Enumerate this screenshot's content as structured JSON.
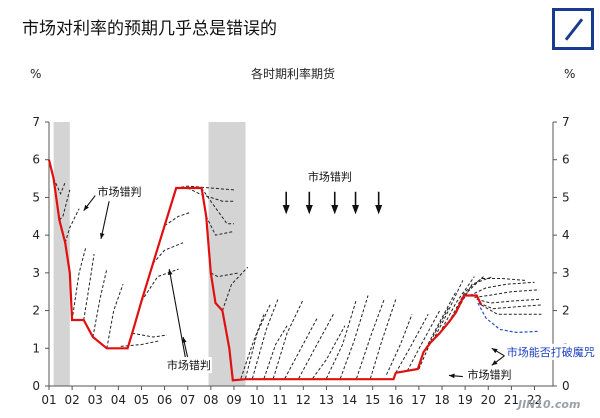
{
  "page": {
    "title": "市场对利率的预期几乎总是错误的",
    "watermark": "JIN10.com"
  },
  "chart_data": {
    "type": "line",
    "title": "各时期利率期货",
    "y_unit_left": "%",
    "y_unit_right": "%",
    "x_tick_labels": [
      "01",
      "02",
      "03",
      "04",
      "05",
      "06",
      "07",
      "08",
      "09",
      "10",
      "11",
      "12",
      "13",
      "14",
      "15",
      "16",
      "17",
      "18",
      "19",
      "20",
      "21",
      "22"
    ],
    "y_tick_labels": [
      "0",
      "1",
      "2",
      "3",
      "4",
      "5",
      "6",
      "7"
    ],
    "xlim": [
      2001,
      2022.8
    ],
    "ylim": [
      0,
      7
    ],
    "recession_bands": [
      [
        2001.2,
        2001.9
      ],
      [
        2007.9,
        2009.5
      ]
    ],
    "colors": {
      "actual": "#e01010",
      "futures": "#222222",
      "recent_futures": "#2a50c8",
      "bands": "#d4d4d4"
    },
    "annotations": [
      {
        "text": "市场错判",
        "x": 2003.1,
        "y": 5.05
      },
      {
        "text": "市场错判",
        "x": 2012.2,
        "y": 5.45
      },
      {
        "text": "市场错判",
        "x": 2006.1,
        "y": 0.45
      },
      {
        "text": "市场错判",
        "x": 2019.1,
        "y": 0.2
      },
      {
        "text": "市场能否打破魔咒",
        "x": 2020.8,
        "y": 0.8
      }
    ],
    "series": [
      {
        "kind": "actual",
        "points": [
          [
            2001.0,
            6.0
          ],
          [
            2001.2,
            5.5
          ],
          [
            2001.45,
            4.4
          ],
          [
            2001.7,
            3.8
          ],
          [
            2001.9,
            3.0
          ],
          [
            2002.0,
            1.75
          ],
          [
            2002.5,
            1.75
          ],
          [
            2002.9,
            1.3
          ],
          [
            2003.5,
            1.0
          ],
          [
            2004.4,
            1.0
          ],
          [
            2004.6,
            1.4
          ],
          [
            2005.0,
            2.25
          ],
          [
            2005.5,
            3.25
          ],
          [
            2006.0,
            4.25
          ],
          [
            2006.5,
            5.25
          ],
          [
            2007.6,
            5.25
          ],
          [
            2007.8,
            4.5
          ],
          [
            2008.0,
            3.0
          ],
          [
            2008.2,
            2.2
          ],
          [
            2008.5,
            2.0
          ],
          [
            2008.8,
            1.0
          ],
          [
            2008.95,
            0.15
          ],
          [
            2009.5,
            0.18
          ],
          [
            2015.9,
            0.18
          ],
          [
            2016.0,
            0.35
          ],
          [
            2016.95,
            0.45
          ],
          [
            2017.2,
            0.9
          ],
          [
            2017.5,
            1.15
          ],
          [
            2017.9,
            1.4
          ],
          [
            2018.3,
            1.7
          ],
          [
            2018.6,
            1.95
          ],
          [
            2018.95,
            2.4
          ],
          [
            2019.5,
            2.4
          ],
          [
            2019.7,
            2.15
          ]
        ]
      },
      {
        "kind": "futures",
        "paths": [
          [
            [
              2001.2,
              5.5
            ],
            [
              2001.5,
              5.1
            ],
            [
              2001.7,
              5.4
            ]
          ],
          [
            [
              2001.45,
              4.4
            ],
            [
              2001.6,
              4.5
            ],
            [
              2001.9,
              5.2
            ]
          ],
          [
            [
              2001.7,
              3.8
            ],
            [
              2001.9,
              4.2
            ],
            [
              2002.3,
              4.7
            ]
          ],
          [
            [
              2002.0,
              1.75
            ],
            [
              2002.3,
              3.0
            ],
            [
              2002.6,
              3.7
            ]
          ],
          [
            [
              2002.5,
              1.75
            ],
            [
              2002.7,
              2.5
            ],
            [
              2002.95,
              3.5
            ]
          ],
          [
            [
              2002.9,
              1.3
            ],
            [
              2003.2,
              2.3
            ],
            [
              2003.5,
              3.1
            ]
          ],
          [
            [
              2003.5,
              1.0
            ],
            [
              2003.8,
              2.0
            ],
            [
              2004.2,
              2.7
            ]
          ],
          [
            [
              2004.1,
              1.05
            ],
            [
              2005.0,
              1.1
            ],
            [
              2005.8,
              1.2
            ]
          ],
          [
            [
              2004.6,
              1.4
            ],
            [
              2005.5,
              1.3
            ],
            [
              2006.1,
              1.35
            ]
          ],
          [
            [
              2005.0,
              2.25
            ],
            [
              2005.7,
              2.9
            ],
            [
              2006.6,
              3.1
            ]
          ],
          [
            [
              2005.5,
              3.25
            ],
            [
              2006.0,
              3.6
            ],
            [
              2006.8,
              3.8
            ]
          ],
          [
            [
              2006.0,
              4.25
            ],
            [
              2006.6,
              4.5
            ],
            [
              2007.1,
              4.6
            ]
          ],
          [
            [
              2006.5,
              5.25
            ],
            [
              2007.0,
              5.3
            ],
            [
              2008.0,
              5.25
            ],
            [
              2009.0,
              5.2
            ]
          ],
          [
            [
              2007.0,
              5.25
            ],
            [
              2007.5,
              5.1
            ],
            [
              2008.5,
              4.9
            ],
            [
              2009.0,
              4.9
            ]
          ],
          [
            [
              2007.6,
              5.25
            ],
            [
              2008.0,
              4.9
            ],
            [
              2008.7,
              4.3
            ],
            [
              2009.0,
              4.3
            ]
          ],
          [
            [
              2007.8,
              4.5
            ],
            [
              2008.2,
              4.0
            ],
            [
              2009.0,
              4.1
            ]
          ],
          [
            [
              2008.0,
              3.0
            ],
            [
              2008.3,
              2.9
            ],
            [
              2009.2,
              3.0
            ]
          ],
          [
            [
              2008.5,
              2.0
            ],
            [
              2008.9,
              2.7
            ],
            [
              2009.6,
              3.15
            ]
          ],
          [
            [
              2009.3,
              0.2
            ],
            [
              2009.8,
              1.1
            ],
            [
              2010.3,
              1.9
            ]
          ],
          [
            [
              2009.5,
              0.2
            ],
            [
              2010.0,
              1.4
            ],
            [
              2010.6,
              2.2
            ]
          ],
          [
            [
              2009.8,
              0.2
            ],
            [
              2010.4,
              1.5
            ],
            [
              2010.9,
              2.3
            ]
          ],
          [
            [
              2010.3,
              0.2
            ],
            [
              2010.8,
              1.1
            ],
            [
              2011.3,
              1.6
            ]
          ],
          [
            [
              2010.7,
              0.2
            ],
            [
              2011.3,
              1.4
            ],
            [
              2012.0,
              2.3
            ]
          ],
          [
            [
              2011.2,
              0.2
            ],
            [
              2011.9,
              1.0
            ],
            [
              2012.6,
              1.8
            ]
          ],
          [
            [
              2011.8,
              0.2
            ],
            [
              2012.5,
              1.0
            ],
            [
              2013.3,
              1.9
            ]
          ],
          [
            [
              2012.4,
              0.2
            ],
            [
              2013.0,
              0.7
            ],
            [
              2013.8,
              1.6
            ]
          ],
          [
            [
              2013.0,
              0.2
            ],
            [
              2013.7,
              1.1
            ],
            [
              2014.3,
              2.3
            ]
          ],
          [
            [
              2013.6,
              0.2
            ],
            [
              2014.2,
              1.2
            ],
            [
              2014.8,
              2.4
            ]
          ],
          [
            [
              2014.3,
              0.2
            ],
            [
              2014.9,
              1.3
            ],
            [
              2015.5,
              2.3
            ]
          ],
          [
            [
              2014.9,
              0.2
            ],
            [
              2015.4,
              1.2
            ],
            [
              2016.0,
              2.3
            ]
          ],
          [
            [
              2015.6,
              0.3
            ],
            [
              2016.2,
              1.1
            ],
            [
              2016.7,
              1.9
            ]
          ],
          [
            [
              2016.0,
              0.35
            ],
            [
              2016.6,
              1.0
            ],
            [
              2017.4,
              1.9
            ]
          ],
          [
            [
              2016.5,
              0.4
            ],
            [
              2017.1,
              1.1
            ],
            [
              2017.9,
              2.0
            ]
          ],
          [
            [
              2017.0,
              0.45
            ],
            [
              2017.6,
              1.3
            ],
            [
              2018.3,
              2.1
            ]
          ],
          [
            [
              2017.3,
              1.0
            ],
            [
              2017.9,
              1.7
            ],
            [
              2018.6,
              2.5
            ]
          ],
          [
            [
              2017.6,
              1.2
            ],
            [
              2018.2,
              1.9
            ],
            [
              2018.9,
              2.8
            ]
          ],
          [
            [
              2017.9,
              1.4
            ],
            [
              2018.6,
              2.2
            ],
            [
              2019.4,
              2.9
            ]
          ],
          [
            [
              2018.3,
              1.7
            ],
            [
              2019.0,
              2.5
            ],
            [
              2019.8,
              2.9
            ]
          ],
          [
            [
              2018.6,
              1.95
            ],
            [
              2019.3,
              2.7
            ],
            [
              2020.2,
              2.9
            ]
          ],
          [
            [
              2018.95,
              2.4
            ],
            [
              2019.7,
              2.85
            ],
            [
              2020.6,
              2.85
            ],
            [
              2021.6,
              2.8
            ]
          ],
          [
            [
              2019.2,
              2.4
            ],
            [
              2019.9,
              2.6
            ],
            [
              2020.8,
              2.7
            ],
            [
              2022.0,
              2.75
            ]
          ],
          [
            [
              2019.4,
              2.35
            ],
            [
              2020.0,
              2.4
            ],
            [
              2021.0,
              2.5
            ],
            [
              2022.2,
              2.55
            ]
          ],
          [
            [
              2019.5,
              2.3
            ],
            [
              2020.1,
              2.2
            ],
            [
              2021.0,
              2.25
            ],
            [
              2022.2,
              2.3
            ]
          ],
          [
            [
              2019.6,
              2.2
            ],
            [
              2020.2,
              2.05
            ],
            [
              2021.2,
              2.1
            ],
            [
              2022.3,
              2.15
            ]
          ],
          [
            [
              2019.7,
              2.15
            ],
            [
              2020.4,
              1.9
            ],
            [
              2021.4,
              1.9
            ],
            [
              2022.3,
              1.9
            ]
          ]
        ]
      },
      {
        "kind": "recent_futures",
        "paths": [
          [
            [
              2019.55,
              2.2
            ],
            [
              2019.9,
              1.8
            ],
            [
              2020.5,
              1.5
            ],
            [
              2021.2,
              1.42
            ],
            [
              2022.2,
              1.45
            ]
          ]
        ]
      }
    ]
  }
}
